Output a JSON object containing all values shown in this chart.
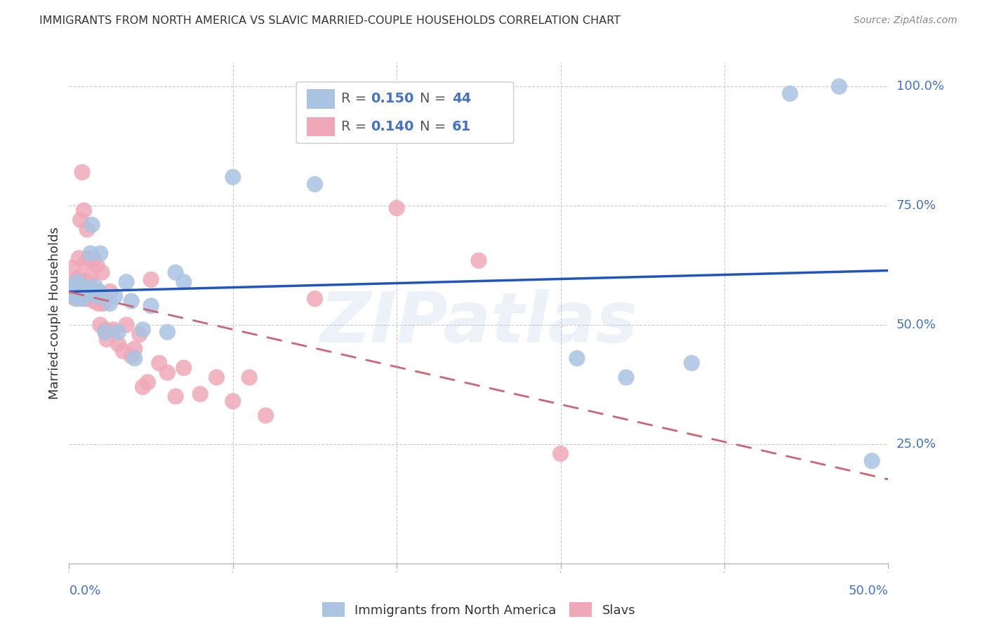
{
  "title": "IMMIGRANTS FROM NORTH AMERICA VS SLAVIC MARRIED-COUPLE HOUSEHOLDS CORRELATION CHART",
  "source": "Source: ZipAtlas.com",
  "ylabel": "Married-couple Households",
  "ytick_labels": [
    "100.0%",
    "75.0%",
    "50.0%",
    "25.0%"
  ],
  "ytick_values": [
    1.0,
    0.75,
    0.5,
    0.25
  ],
  "xlim": [
    0.0,
    0.5
  ],
  "ylim": [
    0.0,
    1.05
  ],
  "legend_blue_r": "0.150",
  "legend_blue_n": "44",
  "legend_pink_r": "0.140",
  "legend_pink_n": "61",
  "legend_blue_label": "Immigrants from North America",
  "legend_pink_label": "Slavs",
  "blue_color": "#aac4e2",
  "pink_color": "#f0a8b8",
  "blue_line_color": "#2255bb",
  "pink_line_color": "#cc6677",
  "watermark": "ZIPatlas",
  "blue_scatter_x": [
    0.001,
    0.002,
    0.003,
    0.003,
    0.004,
    0.005,
    0.005,
    0.006,
    0.007,
    0.008,
    0.008,
    0.009,
    0.01,
    0.01,
    0.011,
    0.012,
    0.013,
    0.014,
    0.015,
    0.016,
    0.017,
    0.018,
    0.019,
    0.02,
    0.022,
    0.025,
    0.028,
    0.03,
    0.035,
    0.038,
    0.04,
    0.045,
    0.05,
    0.06,
    0.065,
    0.07,
    0.1,
    0.15,
    0.31,
    0.34,
    0.38,
    0.44,
    0.47,
    0.49
  ],
  "blue_scatter_y": [
    0.57,
    0.565,
    0.575,
    0.58,
    0.56,
    0.555,
    0.59,
    0.57,
    0.56,
    0.575,
    0.555,
    0.565,
    0.58,
    0.57,
    0.575,
    0.57,
    0.65,
    0.71,
    0.57,
    0.58,
    0.56,
    0.57,
    0.65,
    0.565,
    0.485,
    0.545,
    0.56,
    0.485,
    0.59,
    0.55,
    0.43,
    0.49,
    0.54,
    0.485,
    0.61,
    0.59,
    0.81,
    0.795,
    0.43,
    0.39,
    0.42,
    0.985,
    1.0,
    0.215
  ],
  "pink_scatter_x": [
    0.001,
    0.001,
    0.002,
    0.002,
    0.003,
    0.003,
    0.004,
    0.004,
    0.005,
    0.005,
    0.006,
    0.006,
    0.007,
    0.007,
    0.008,
    0.008,
    0.009,
    0.009,
    0.01,
    0.01,
    0.011,
    0.011,
    0.012,
    0.012,
    0.013,
    0.013,
    0.014,
    0.015,
    0.015,
    0.016,
    0.017,
    0.018,
    0.019,
    0.02,
    0.021,
    0.022,
    0.023,
    0.025,
    0.027,
    0.03,
    0.033,
    0.035,
    0.038,
    0.04,
    0.043,
    0.045,
    0.048,
    0.05,
    0.055,
    0.06,
    0.065,
    0.07,
    0.08,
    0.09,
    0.1,
    0.11,
    0.12,
    0.15,
    0.2,
    0.25,
    0.3
  ],
  "pink_scatter_y": [
    0.58,
    0.56,
    0.59,
    0.62,
    0.565,
    0.58,
    0.555,
    0.57,
    0.595,
    0.56,
    0.6,
    0.64,
    0.58,
    0.72,
    0.82,
    0.56,
    0.555,
    0.74,
    0.63,
    0.56,
    0.555,
    0.7,
    0.64,
    0.59,
    0.64,
    0.6,
    0.635,
    0.55,
    0.64,
    0.57,
    0.625,
    0.545,
    0.5,
    0.61,
    0.545,
    0.49,
    0.47,
    0.57,
    0.49,
    0.46,
    0.445,
    0.5,
    0.435,
    0.45,
    0.48,
    0.37,
    0.38,
    0.595,
    0.42,
    0.4,
    0.35,
    0.41,
    0.355,
    0.39,
    0.34,
    0.39,
    0.31,
    0.555,
    0.745,
    0.635,
    0.23
  ]
}
